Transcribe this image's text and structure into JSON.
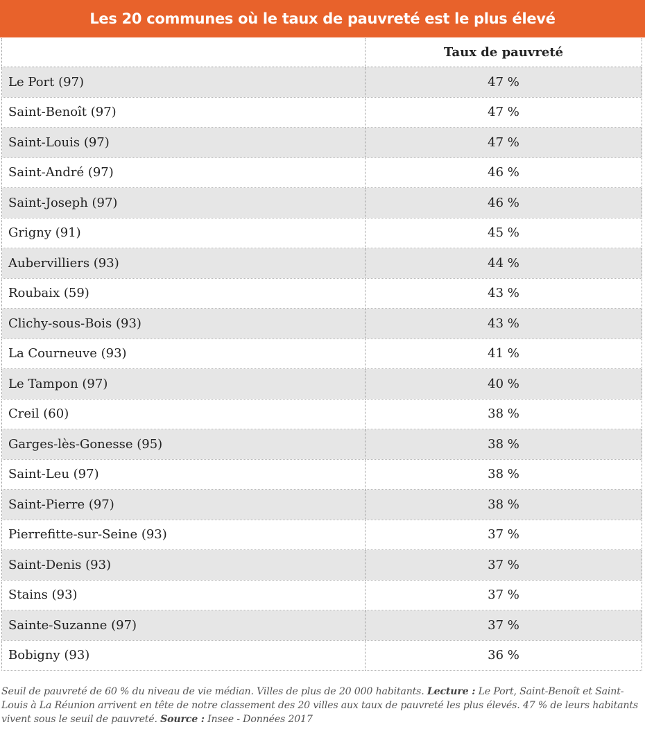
{
  "title": "Les 20 communes où le taux de pauvreté est le plus élevé",
  "table": {
    "headers": [
      "",
      "Taux de pauvreté"
    ],
    "rows": [
      {
        "commune": "Le Port (97)",
        "taux": "47 %"
      },
      {
        "commune": "Saint-Benoît (97)",
        "taux": "47 %"
      },
      {
        "commune": "Saint-Louis (97)",
        "taux": "47 %"
      },
      {
        "commune": "Saint-André (97)",
        "taux": "46 %"
      },
      {
        "commune": "Saint-Joseph (97)",
        "taux": "46 %"
      },
      {
        "commune": "Grigny (91)",
        "taux": "45 %"
      },
      {
        "commune": "Aubervilliers (93)",
        "taux": "44 %"
      },
      {
        "commune": "Roubaix (59)",
        "taux": "43 %"
      },
      {
        "commune": "Clichy-sous-Bois (93)",
        "taux": "43 %"
      },
      {
        "commune": "La Courneuve (93)",
        "taux": "41 %"
      },
      {
        "commune": "Le Tampon (97)",
        "taux": "40 %"
      },
      {
        "commune": "Creil (60)",
        "taux": "38 %"
      },
      {
        "commune": "Garges-lès-Gonesse (95)",
        "taux": "38 %"
      },
      {
        "commune": "Saint-Leu (97)",
        "taux": "38 %"
      },
      {
        "commune": "Saint-Pierre (97)",
        "taux": "38 %"
      },
      {
        "commune": "Pierrefitte-sur-Seine (93)",
        "taux": "37 %"
      },
      {
        "commune": "Saint-Denis (93)",
        "taux": "37 %"
      },
      {
        "commune": "Stains (93)",
        "taux": "37 %"
      },
      {
        "commune": "Sainte-Suzanne (97)",
        "taux": "37 %"
      },
      {
        "commune": "Bobigny (93)",
        "taux": "36 %"
      }
    ]
  },
  "footnote": {
    "intro": "Seuil de pauvreté de 60 % du niveau de vie médian. Villes de plus de 20 000 habitants. ",
    "lecture_label": "Lecture :",
    "lecture_text": " Le Port, Saint-Benoît et Saint-Louis à La Réunion arrivent en tête de notre classement des 20 villes aux taux de pauvreté les plus élevés. 47 % de leurs habitants vivent sous le seuil de pauvreté. ",
    "source_label": "Source :",
    "source_text": " Insee - Données 2017"
  },
  "colors": {
    "banner": "#e8622b",
    "row_alt": "#e6e6e6",
    "row_plain": "#ffffff"
  }
}
